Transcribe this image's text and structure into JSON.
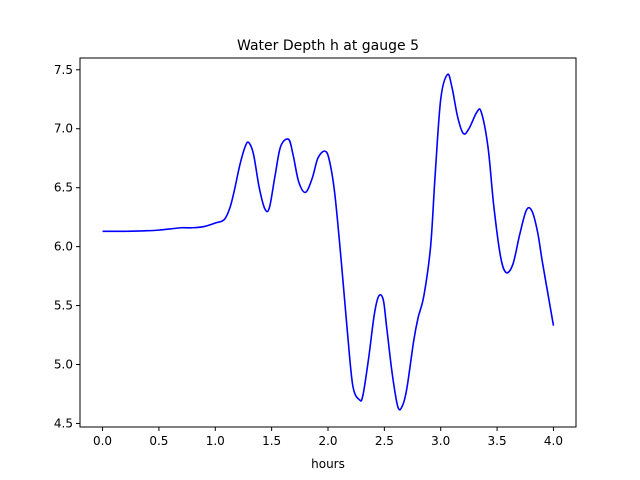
{
  "chart_data": {
    "type": "line",
    "title": "Water Depth h at gauge 5",
    "xlabel": "hours",
    "ylabel": "",
    "xlim": [
      -0.2,
      4.2
    ],
    "ylim": [
      4.47,
      7.6
    ],
    "xticks": [
      0.0,
      0.5,
      1.0,
      1.5,
      2.0,
      2.5,
      3.0,
      3.5,
      4.0
    ],
    "xtick_labels": [
      "0.0",
      "0.5",
      "1.0",
      "1.5",
      "2.0",
      "2.5",
      "3.0",
      "3.5",
      "4.0"
    ],
    "yticks": [
      4.5,
      5.0,
      5.5,
      6.0,
      6.5,
      7.0,
      7.5
    ],
    "ytick_labels": [
      "4.5",
      "5.0",
      "5.5",
      "6.0",
      "6.5",
      "7.0",
      "7.5"
    ],
    "grid": false,
    "series": [
      {
        "name": "",
        "color": "#0000ff",
        "x": [
          0.0,
          0.2,
          0.4,
          0.5,
          0.6,
          0.7,
          0.8,
          0.9,
          1.0,
          1.08,
          1.13,
          1.17,
          1.22,
          1.27,
          1.3,
          1.34,
          1.39,
          1.44,
          1.48,
          1.53,
          1.58,
          1.65,
          1.69,
          1.74,
          1.8,
          1.86,
          1.91,
          1.97,
          2.01,
          2.06,
          2.12,
          2.17,
          2.22,
          2.28,
          2.31,
          2.36,
          2.41,
          2.45,
          2.49,
          2.52,
          2.57,
          2.62,
          2.66,
          2.7,
          2.76,
          2.8,
          2.85,
          2.91,
          2.95,
          3.0,
          3.06,
          3.1,
          3.15,
          3.2,
          3.25,
          3.32,
          3.36,
          3.42,
          3.47,
          3.53,
          3.58,
          3.64,
          3.7,
          3.76,
          3.81,
          3.86,
          3.9,
          3.96,
          4.0
        ],
        "y": [
          6.13,
          6.13,
          6.135,
          6.14,
          6.15,
          6.16,
          6.16,
          6.17,
          6.2,
          6.23,
          6.33,
          6.48,
          6.7,
          6.86,
          6.88,
          6.78,
          6.5,
          6.32,
          6.33,
          6.6,
          6.85,
          6.91,
          6.78,
          6.55,
          6.46,
          6.58,
          6.75,
          6.81,
          6.74,
          6.45,
          5.85,
          5.3,
          4.82,
          4.7,
          4.74,
          5.05,
          5.42,
          5.58,
          5.55,
          5.32,
          4.92,
          4.64,
          4.65,
          4.8,
          5.2,
          5.4,
          5.58,
          6.0,
          6.6,
          7.25,
          7.46,
          7.35,
          7.1,
          6.96,
          7.0,
          7.14,
          7.14,
          6.84,
          6.35,
          5.92,
          5.78,
          5.85,
          6.1,
          6.31,
          6.3,
          6.12,
          5.88,
          5.55,
          5.33
        ]
      }
    ]
  }
}
